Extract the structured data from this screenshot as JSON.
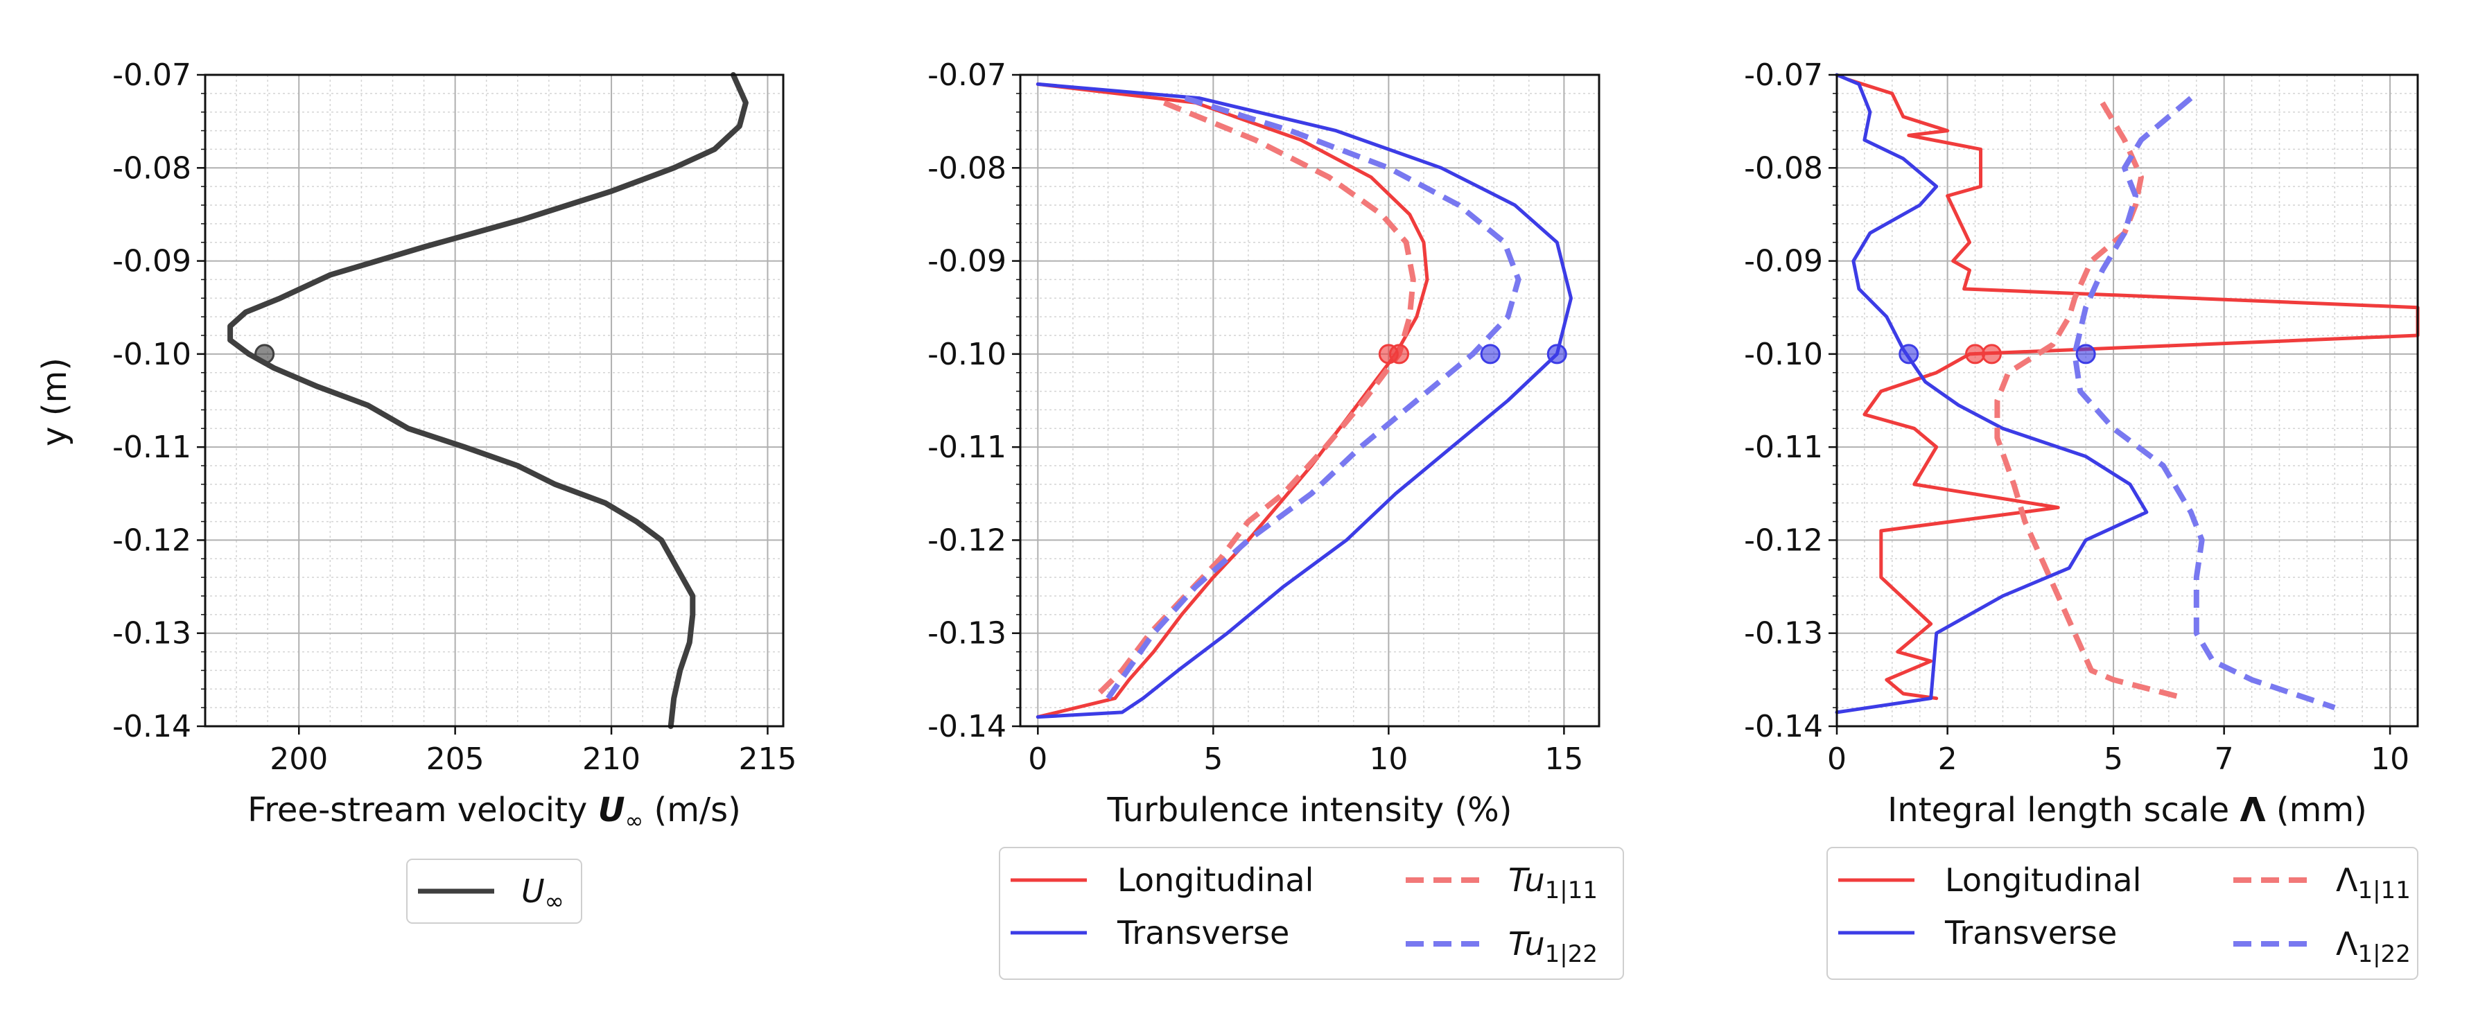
{
  "figure": {
    "y_axis_label": "y (m)",
    "y_tick_labels": [
      "-0.07",
      "-0.08",
      "-0.09",
      "-0.10",
      "-0.11",
      "-0.12",
      "-0.13",
      "-0.14"
    ]
  },
  "legend1": {
    "u_inf": "U",
    "u_inf_sub": "∞"
  },
  "legend2": {
    "longitudinal": "Longitudinal",
    "transverse": "Transverse",
    "tu11_main": "Tu",
    "tu11_sub": "1|11",
    "tu22_main": "Tu",
    "tu22_sub": "1|22"
  },
  "legend3": {
    "longitudinal": "Longitudinal",
    "transverse": "Transverse",
    "l11_main": "Λ",
    "l11_sub": "1|11",
    "l22_main": "Λ",
    "l22_sub": "1|22"
  },
  "colors": {
    "black": "#3f3f3f",
    "red": "#f03c3c",
    "blue": "#3c3ce6",
    "red_light": "#f27878",
    "blue_light": "#7878f0"
  },
  "chart_data": [
    {
      "type": "line",
      "xlabel": "Free-stream velocity U∞ (m/s)",
      "xlabel_pre": "Free-stream velocity ",
      "xlabel_sym": "U",
      "xlabel_sub": "∞",
      "xlabel_post": " (m/s)",
      "ylabel": "y (m)",
      "xlim": [
        197,
        215.5
      ],
      "ylim": [
        -0.14,
        -0.07
      ],
      "x_ticks": [
        200,
        205,
        210,
        215
      ],
      "x_tick_labels": [
        "200",
        "205",
        "210",
        "215"
      ],
      "grid": true,
      "series": [
        {
          "name": "U∞",
          "style": "solid",
          "color_key": "black",
          "x": [
            213.9,
            214.3,
            214.1,
            213.3,
            212.0,
            210.0,
            207.2,
            204.0,
            201.0,
            199.4,
            198.3,
            197.8,
            197.8,
            198.4,
            199.2,
            200.6,
            202.2,
            203.5,
            205.3,
            207.0,
            208.2,
            209.8,
            210.8,
            211.6,
            212.1,
            212.6,
            212.6,
            212.5,
            212.2,
            212.0,
            211.9
          ],
          "y": [
            -0.07,
            -0.073,
            -0.0755,
            -0.078,
            -0.08,
            -0.0825,
            -0.0855,
            -0.0885,
            -0.0915,
            -0.094,
            -0.0955,
            -0.097,
            -0.0985,
            -0.1,
            -0.1015,
            -0.1035,
            -0.1055,
            -0.108,
            -0.11,
            -0.112,
            -0.114,
            -0.116,
            -0.118,
            -0.12,
            -0.123,
            -0.126,
            -0.128,
            -0.131,
            -0.134,
            -0.137,
            -0.14
          ]
        }
      ],
      "markers": [
        {
          "x": 198.9,
          "y": -0.1,
          "color_key": "black"
        }
      ]
    },
    {
      "type": "line",
      "xlabel": "Turbulence intensity (%)",
      "ylabel": "y (m)",
      "xlim": [
        -0.5,
        16.0
      ],
      "ylim": [
        -0.14,
        -0.07
      ],
      "x_ticks": [
        0,
        5,
        10,
        15
      ],
      "x_tick_labels": [
        "0",
        "5",
        "10",
        "15"
      ],
      "grid": true,
      "series": [
        {
          "name": "Longitudinal",
          "style": "solid",
          "color_key": "red",
          "x": [
            0.0,
            4.5,
            7.5,
            9.5,
            10.6,
            11.0,
            11.1,
            10.8,
            10.2,
            9.4,
            8.6,
            7.8,
            6.9,
            6.0,
            5.0,
            4.1,
            3.3,
            2.6,
            2.2,
            0.0
          ],
          "y": [
            -0.071,
            -0.073,
            -0.077,
            -0.081,
            -0.085,
            -0.088,
            -0.092,
            -0.096,
            -0.1,
            -0.104,
            -0.108,
            -0.112,
            -0.116,
            -0.12,
            -0.124,
            -0.128,
            -0.132,
            -0.135,
            -0.137,
            -0.139
          ]
        },
        {
          "name": "Transverse",
          "style": "solid",
          "color_key": "blue",
          "x": [
            0.0,
            4.6,
            8.5,
            11.5,
            13.6,
            14.8,
            15.2,
            14.8,
            13.4,
            11.8,
            10.2,
            8.8,
            7.0,
            5.4,
            4.0,
            3.0,
            2.4,
            0.0
          ],
          "y": [
            -0.071,
            -0.0725,
            -0.076,
            -0.08,
            -0.084,
            -0.088,
            -0.094,
            -0.1,
            -0.105,
            -0.11,
            -0.115,
            -0.12,
            -0.125,
            -0.13,
            -0.134,
            -0.137,
            -0.1385,
            -0.139
          ]
        },
        {
          "name": "Tu1|11",
          "style": "dashed",
          "color_key": "red_light",
          "x": [
            3.6,
            6.2,
            8.3,
            9.8,
            10.5,
            10.7,
            10.6,
            10.3,
            9.3,
            8.2,
            7.0,
            6.0,
            5.2,
            4.2,
            3.2,
            2.4,
            1.6
          ],
          "y": [
            -0.073,
            -0.077,
            -0.081,
            -0.085,
            -0.088,
            -0.092,
            -0.096,
            -0.1,
            -0.105,
            -0.11,
            -0.115,
            -0.118,
            -0.122,
            -0.126,
            -0.13,
            -0.134,
            -0.137
          ]
        },
        {
          "name": "Tu1|22",
          "style": "dashed",
          "color_key": "blue_light",
          "x": [
            4.2,
            7.2,
            10.0,
            12.0,
            13.3,
            13.7,
            13.4,
            12.4,
            10.8,
            9.2,
            7.8,
            6.0,
            4.5,
            3.3,
            2.0
          ],
          "y": [
            -0.0725,
            -0.076,
            -0.08,
            -0.084,
            -0.088,
            -0.092,
            -0.096,
            -0.1,
            -0.105,
            -0.11,
            -0.115,
            -0.12,
            -0.125,
            -0.13,
            -0.137
          ]
        }
      ],
      "markers": [
        {
          "x": 10.0,
          "y": -0.1,
          "color_key": "red"
        },
        {
          "x": 10.3,
          "y": -0.1,
          "color_key": "red"
        },
        {
          "x": 12.9,
          "y": -0.1,
          "color_key": "blue"
        },
        {
          "x": 14.8,
          "y": -0.1,
          "color_key": "blue"
        }
      ]
    },
    {
      "type": "line",
      "xlabel": "Integral length scale Λ (mm)",
      "xlabel_pre": "Integral length scale ",
      "xlabel_sym": "Λ",
      "xlabel_sub": "",
      "xlabel_post": " (mm)",
      "ylabel": "y (m)",
      "xlim": [
        0,
        10.5
      ],
      "ylim": [
        -0.14,
        -0.07
      ],
      "x_ticks": [
        0,
        2,
        5,
        7,
        10
      ],
      "x_tick_labels": [
        "0",
        "2",
        "5",
        "7",
        "10"
      ],
      "grid": true,
      "series": [
        {
          "name": "Longitudinal",
          "style": "solid",
          "color_key": "red",
          "x": [
            0.2,
            1.0,
            1.2,
            2.0,
            1.3,
            2.6,
            2.6,
            2.0,
            2.4,
            2.1,
            2.4,
            2.3,
            10.5,
            10.5,
            2.4,
            1.8,
            0.8,
            0.5,
            1.4,
            1.8,
            1.4,
            4.0,
            0.8,
            0.8,
            1.7,
            1.1,
            1.7,
            0.9,
            1.2,
            1.8
          ],
          "y": [
            -0.0705,
            -0.072,
            -0.0745,
            -0.076,
            -0.0765,
            -0.078,
            -0.082,
            -0.083,
            -0.088,
            -0.09,
            -0.091,
            -0.093,
            -0.095,
            -0.098,
            -0.1,
            -0.102,
            -0.104,
            -0.1065,
            -0.108,
            -0.11,
            -0.114,
            -0.1165,
            -0.119,
            -0.124,
            -0.129,
            -0.132,
            -0.133,
            -0.135,
            -0.1365,
            -0.137
          ]
        },
        {
          "name": "Transverse",
          "style": "solid",
          "color_key": "blue",
          "x": [
            0.0,
            0.4,
            0.6,
            0.5,
            1.2,
            1.8,
            1.5,
            0.6,
            0.3,
            0.4,
            0.9,
            1.2,
            1.6,
            2.2,
            3.0,
            4.5,
            5.3,
            5.6,
            4.5,
            4.2,
            3.0,
            1.8,
            1.7,
            0.0
          ],
          "y": [
            -0.07,
            -0.071,
            -0.074,
            -0.077,
            -0.079,
            -0.082,
            -0.084,
            -0.087,
            -0.09,
            -0.093,
            -0.096,
            -0.0995,
            -0.103,
            -0.1055,
            -0.108,
            -0.111,
            -0.114,
            -0.117,
            -0.12,
            -0.123,
            -0.126,
            -0.13,
            -0.137,
            -0.1385
          ]
        },
        {
          "name": "Λ1|11",
          "style": "dashed",
          "color_key": "red_light",
          "x": [
            4.8,
            5.2,
            5.5,
            5.4,
            5.2,
            4.6,
            4.3,
            4.2,
            3.9,
            3.1,
            2.9,
            2.9,
            3.2,
            3.4,
            3.7,
            4.0,
            4.3,
            4.6,
            5.0,
            6.3
          ],
          "y": [
            -0.073,
            -0.077,
            -0.081,
            -0.084,
            -0.087,
            -0.09,
            -0.094,
            -0.096,
            -0.099,
            -0.102,
            -0.105,
            -0.109,
            -0.114,
            -0.118,
            -0.122,
            -0.126,
            -0.13,
            -0.134,
            -0.135,
            -0.137
          ]
        },
        {
          "name": "Λ1|22",
          "style": "dashed",
          "color_key": "blue_light",
          "x": [
            6.4,
            5.5,
            5.2,
            5.4,
            5.2,
            4.8,
            4.5,
            4.3,
            4.4,
            5.0,
            5.9,
            6.4,
            6.6,
            6.5,
            6.5,
            6.8,
            7.5,
            9.0
          ],
          "y": [
            -0.0725,
            -0.077,
            -0.08,
            -0.083,
            -0.087,
            -0.091,
            -0.095,
            -0.1,
            -0.104,
            -0.108,
            -0.112,
            -0.117,
            -0.12,
            -0.124,
            -0.13,
            -0.133,
            -0.135,
            -0.138
          ]
        }
      ],
      "markers": [
        {
          "x": 1.3,
          "y": -0.1,
          "color_key": "blue"
        },
        {
          "x": 2.5,
          "y": -0.1,
          "color_key": "red"
        },
        {
          "x": 2.8,
          "y": -0.1,
          "color_key": "red"
        },
        {
          "x": 4.5,
          "y": -0.1,
          "color_key": "blue"
        }
      ]
    }
  ]
}
